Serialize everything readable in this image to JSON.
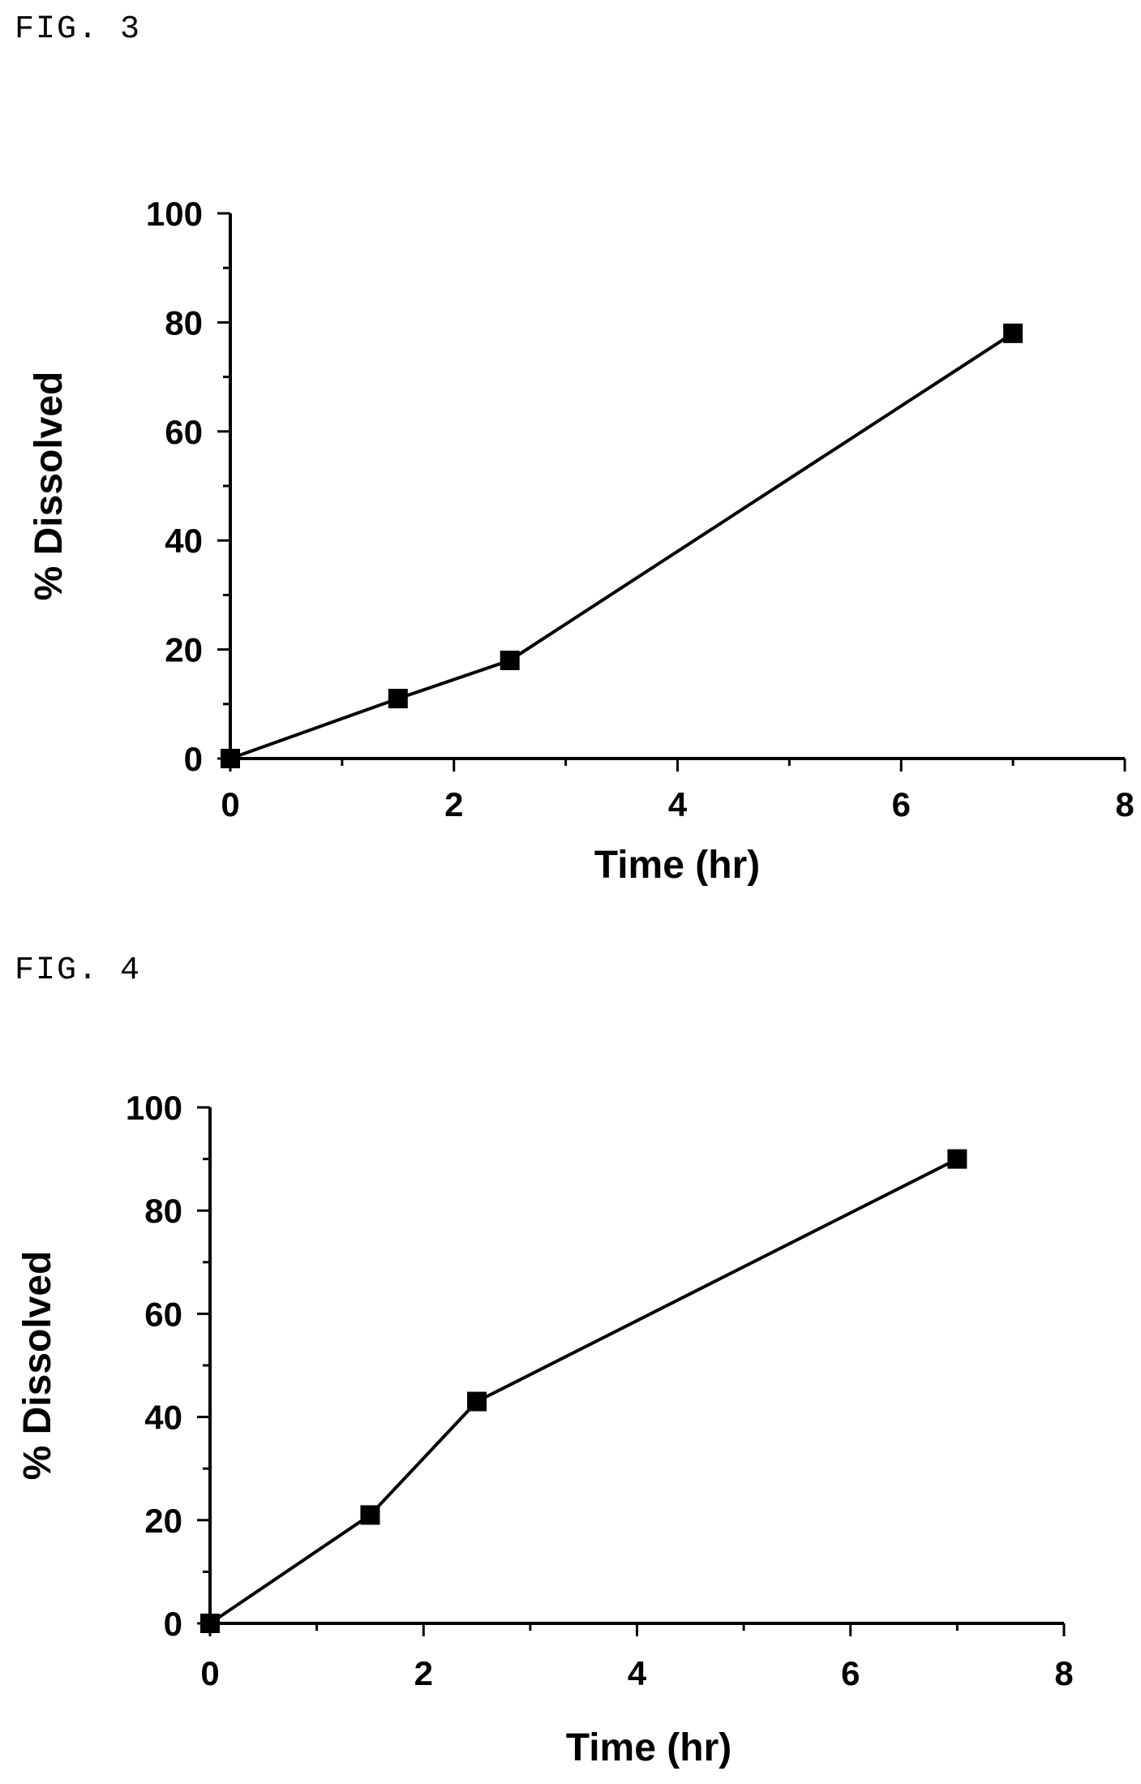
{
  "figures": [
    {
      "label": "FIG. 3"
    },
    {
      "label": "FIG. 4"
    }
  ],
  "chart_data": [
    {
      "type": "line",
      "x": [
        0,
        1.5,
        2.5,
        7
      ],
      "series": [
        {
          "values": [
            0,
            11,
            18,
            78
          ],
          "marker": "square",
          "color": "#000000"
        }
      ],
      "xlabel": "Time (hr)",
      "ylabel": "% Dissolved",
      "xlim": [
        0,
        8
      ],
      "ylim": [
        0,
        100
      ],
      "xticks": [
        0,
        2,
        4,
        6,
        8
      ],
      "yticks": [
        0,
        20,
        40,
        60,
        80,
        100
      ],
      "grid": false
    },
    {
      "type": "line",
      "x": [
        0,
        1.5,
        2.5,
        7
      ],
      "series": [
        {
          "values": [
            0,
            21,
            43,
            90
          ],
          "marker": "square",
          "color": "#000000"
        }
      ],
      "xlabel": "Time (hr)",
      "ylabel": "% Dissolved",
      "xlim": [
        0,
        8
      ],
      "ylim": [
        0,
        100
      ],
      "xticks": [
        0,
        2,
        4,
        6,
        8
      ],
      "yticks": [
        0,
        20,
        40,
        60,
        80,
        100
      ],
      "grid": false
    }
  ]
}
